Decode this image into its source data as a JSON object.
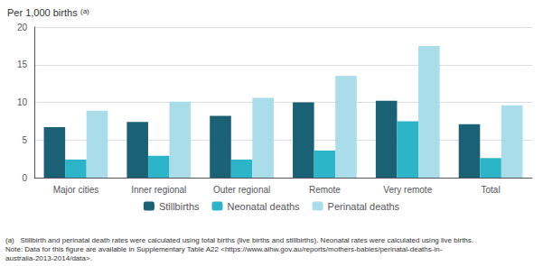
{
  "chart_data": {
    "type": "bar",
    "ylabel": "Per 1,000 births",
    "categories": [
      "Major cities",
      "Inner regional",
      "Outer regional",
      "Remote",
      "Very remote",
      "Total"
    ],
    "series": [
      {
        "name": "Stillbirths",
        "color": "#1a6175",
        "values": [
          6.7,
          7.4,
          8.2,
          10.0,
          10.2,
          7.1
        ]
      },
      {
        "name": "Neonatal deaths",
        "color": "#2cb5c8",
        "values": [
          2.4,
          2.9,
          2.4,
          3.6,
          7.5,
          2.6
        ]
      },
      {
        "name": "Perinatal deaths",
        "color": "#a8dde9",
        "values": [
          8.9,
          10.1,
          10.6,
          13.5,
          17.5,
          9.6
        ]
      }
    ],
    "ylim": [
      0,
      20
    ],
    "yticks": [
      0,
      5,
      10,
      15,
      20
    ],
    "grid": true,
    "legend": "bottom",
    "annotations": [
      "(a)",
      "(a)   Stillbirth and perinatal death rates were calculated using total births (live births and stillbirths). Neonatal rates were calculated using live births.",
      "Note: Data for this figure are available in Supplementary Table A22 <https://www.aihw.gov.au/reports/mothers-babies/perinatal-deaths-in-",
      "australia-2013-2014/data>."
    ]
  }
}
